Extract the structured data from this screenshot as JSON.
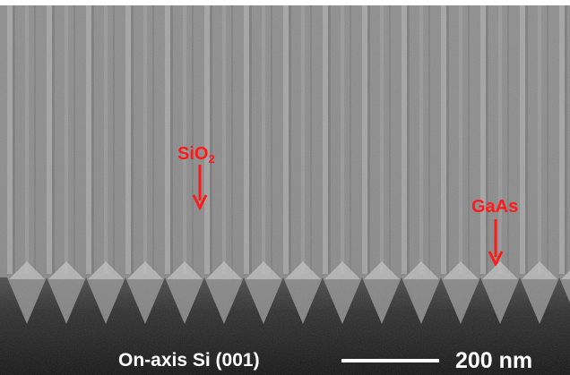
{
  "image": {
    "description_kind": "SEM micrograph",
    "background_color": "#8a8a8a",
    "annotation_color": "#ff1a1a"
  },
  "labels": {
    "sio2": {
      "main": "SiO",
      "sub": "2"
    },
    "gaas": "GaAs"
  },
  "caption": {
    "substrate": "On-axis Si (001)",
    "scale_bar": "200 nm"
  }
}
